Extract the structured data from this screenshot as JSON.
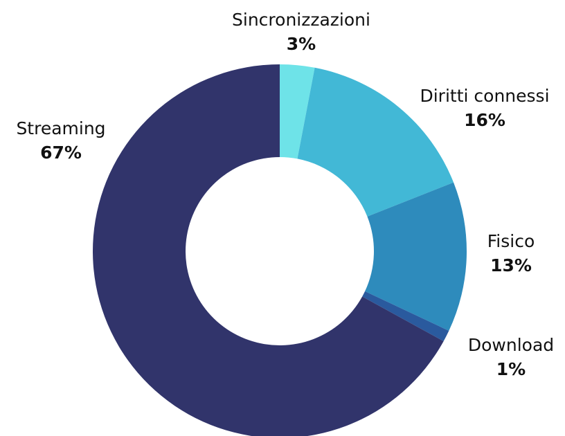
{
  "chart_data": {
    "type": "donut",
    "categories": [
      "Sincronizzazioni",
      "Diritti connessi",
      "Fisico",
      "Download",
      "Streaming"
    ],
    "values": [
      3,
      16,
      13,
      1,
      67
    ],
    "value_labels": [
      "3%",
      "16%",
      "13%",
      "1%",
      "67%"
    ],
    "colors": [
      "#6ee3e8",
      "#42b8d6",
      "#2e8bbc",
      "#2a5a9e",
      "#31346b"
    ]
  }
}
